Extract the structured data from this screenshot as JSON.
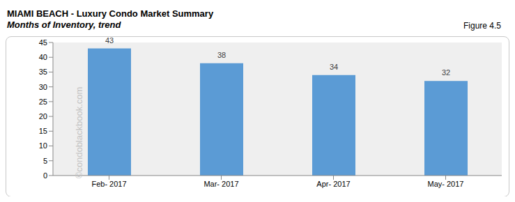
{
  "chart_data": {
    "type": "bar",
    "title": "MIAMI BEACH - Luxury Condo Market Summary",
    "subtitle": "Months of Inventory, trend",
    "figure_label": "Figure 4.5",
    "watermark": "©condoblackbook.com",
    "categories": [
      "Feb- 2017",
      "Mar- 2017",
      "Apr- 2017",
      "May- 2017"
    ],
    "values": [
      43,
      38,
      34,
      32
    ],
    "color": "#5b9bd5",
    "ylim": [
      0,
      45
    ],
    "yticks": [
      0,
      5,
      10,
      15,
      20,
      25,
      30,
      35,
      40,
      45
    ],
    "grid": false,
    "data_labels": true
  }
}
